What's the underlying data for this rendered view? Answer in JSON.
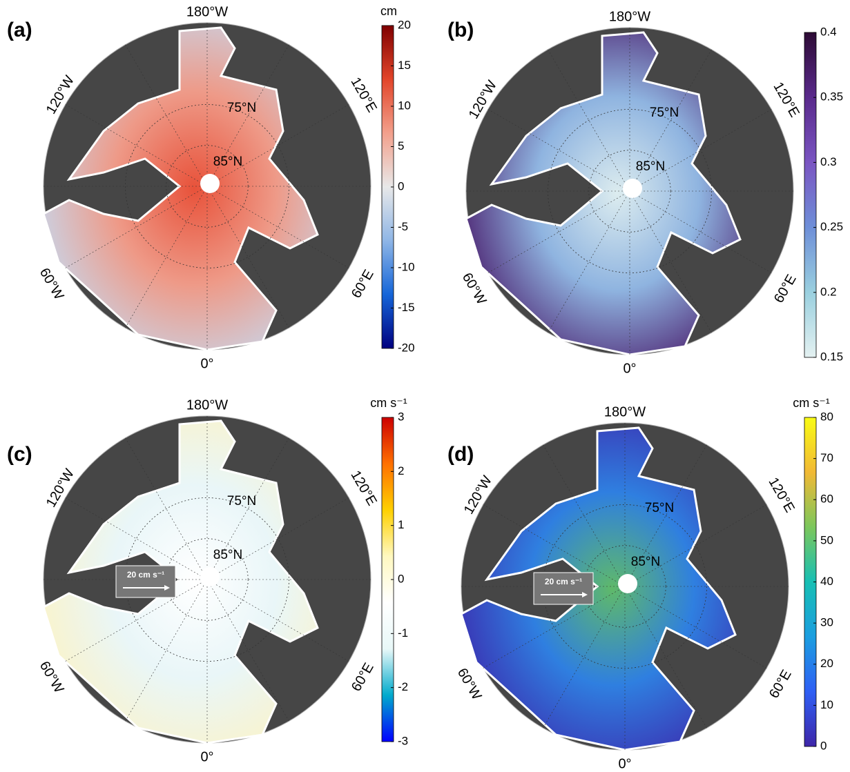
{
  "panels": [
    {
      "label": "(a)",
      "lon_labels": [
        "180°W",
        "120°W",
        "120°E",
        "60°W",
        "60°E",
        "0°"
      ],
      "lat_labels": [
        "75°N",
        "85°N"
      ],
      "colorbar": {
        "unit": "cm",
        "lim": [
          -20,
          20
        ],
        "ticks": [
          -20,
          -15,
          -10,
          -5,
          0,
          5,
          10,
          15,
          20
        ],
        "colors": [
          "#00007f",
          "#1565d8",
          "#8fb6e6",
          "#e8e8e8",
          "#f2a08c",
          "#e2452a",
          "#7f0000"
        ]
      }
    },
    {
      "label": "(b)",
      "lon_labels": [
        "180°W",
        "120°W",
        "120°E",
        "60°W",
        "60°E",
        "0°"
      ],
      "lat_labels": [
        "75°N",
        "85°N"
      ],
      "colorbar": {
        "lim": [
          0.15,
          0.4
        ],
        "ticks": [
          0.15,
          0.2,
          0.25,
          0.3,
          0.35,
          0.4
        ],
        "colors": [
          "#e4f1f1",
          "#9ad0df",
          "#6e8fd8",
          "#7a55c2",
          "#5a2a8c",
          "#2d0b35"
        ]
      }
    },
    {
      "label": "(c)",
      "lon_labels": [
        "180°W",
        "120°W",
        "120°E",
        "60°W",
        "60°E",
        "0°"
      ],
      "lat_labels": [
        "75°N",
        "85°N"
      ],
      "colorbar": {
        "unit": "cm s⁻¹",
        "lim": [
          -3,
          3
        ],
        "ticks": [
          -3,
          -2,
          -1,
          0,
          1,
          2,
          3
        ],
        "colors": [
          "#0000ff",
          "#00aacc",
          "#e8f8f8",
          "#ffffff",
          "#fff8c0",
          "#ffd000",
          "#ff7000",
          "#cc0000"
        ]
      },
      "scale_label": "20 cm s⁻¹"
    },
    {
      "label": "(d)",
      "lon_labels": [
        "180°W",
        "120°W",
        "120°E",
        "60°W",
        "60°E",
        "0°"
      ],
      "lat_labels": [
        "75°N",
        "85°N"
      ],
      "colorbar": {
        "unit": "cm s⁻¹",
        "lim": [
          0,
          80
        ],
        "ticks": [
          0,
          10,
          20,
          30,
          40,
          50,
          60,
          70,
          80
        ],
        "colors": [
          "#3e26a8",
          "#2f5ff4",
          "#1b9ee0",
          "#17bfb4",
          "#7cc75c",
          "#f1b935",
          "#f9fb15"
        ]
      },
      "scale_label": "20 cm s⁻¹"
    }
  ]
}
